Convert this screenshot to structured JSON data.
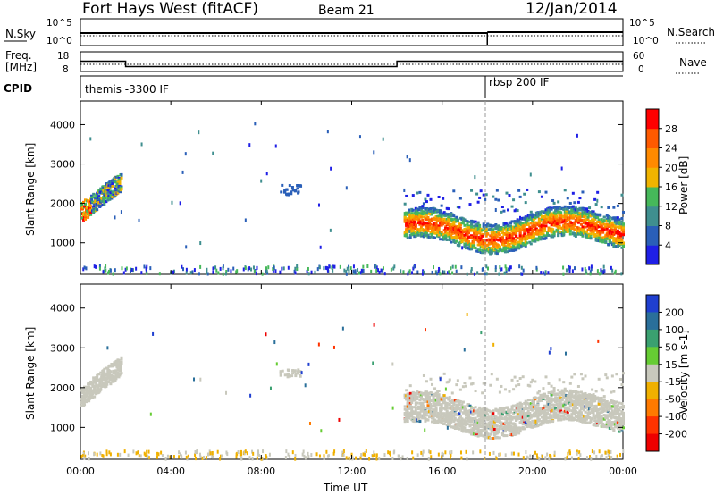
{
  "header": {
    "station": "Fort Hays West (fitACF)",
    "beam": "Beam 21",
    "date": "12/Jan/2014"
  },
  "top_panels": {
    "nsky_label": "N.Sky",
    "nsky_ticks": [
      "10^5",
      "10^0"
    ],
    "nsearch_label": "N.Search",
    "nsearch_ticks": [
      "10^5",
      "10^0"
    ],
    "freq_label": "Freq.",
    "freq_unit": "[MHz]",
    "freq_ticks": [
      "18",
      "8"
    ],
    "nave_label": "Nave",
    "nave_ticks": [
      "60",
      "0"
    ],
    "cpid_label": "CPID",
    "cpid_segments": [
      {
        "name": "themis -3300 IF",
        "start_hour": 0,
        "end_hour": 18
      },
      {
        "name": "rbsp 200 IF",
        "start_hour": 18,
        "end_hour": 24
      }
    ],
    "freq_steps": [
      {
        "start_hour": 0,
        "end_hour": 2,
        "value": 13.2
      },
      {
        "start_hour": 2,
        "end_hour": 14,
        "value": 10.5
      },
      {
        "start_hour": 14,
        "end_hour": 24,
        "value": 13.2
      }
    ]
  },
  "chart_data": [
    {
      "type": "heatmap",
      "name": "power",
      "ylabel": "Slant Range [km]",
      "colorbar_label": "Power [dB]",
      "ylim": [
        200,
        4600
      ],
      "yticks": [
        "1000",
        "2000",
        "3000",
        "4000"
      ],
      "colorbar_ticks": [
        "4",
        "8",
        "12",
        "16",
        "20",
        "24",
        "28"
      ],
      "colorbar_colors": [
        "#1f1fe6",
        "#2a5fb8",
        "#3f8f8f",
        "#46b85a",
        "#f0b400",
        "#ff8a00",
        "#ff5a00",
        "#ff0000"
      ],
      "x_range_hours": [
        0,
        24
      ]
    },
    {
      "type": "heatmap",
      "name": "velocity",
      "ylabel": "Slant Range [km]",
      "xlabel": "Time UT",
      "colorbar_label": "Velocity [m s-1]",
      "ylim": [
        200,
        4600
      ],
      "yticks": [
        "1000",
        "2000",
        "3000",
        "4000"
      ],
      "colorbar_ticks": [
        "200",
        "100",
        "50",
        "15",
        "-15",
        "-50",
        "-100",
        "-200"
      ],
      "colorbar_colors": [
        "#1f3fd0",
        "#2a6f9a",
        "#3aa070",
        "#66cc33",
        "#c8c8bc",
        "#f0b000",
        "#ff7a00",
        "#ff3300",
        "#ee0000"
      ],
      "x_ticks": [
        "00:00",
        "04:00",
        "08:00",
        "12:00",
        "16:00",
        "20:00",
        "00:00"
      ],
      "x_range_hours": [
        0,
        24
      ]
    }
  ]
}
